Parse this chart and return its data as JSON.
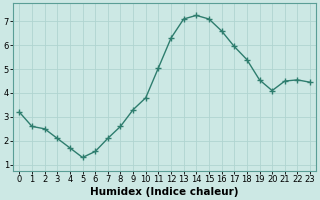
{
  "title": "",
  "xlabel": "Humidex (Indice chaleur)",
  "ylabel": "",
  "x": [
    0,
    1,
    2,
    3,
    4,
    5,
    6,
    7,
    8,
    9,
    10,
    11,
    12,
    13,
    14,
    15,
    16,
    17,
    18,
    19,
    20,
    21,
    22,
    23
  ],
  "y": [
    3.2,
    2.6,
    2.5,
    2.1,
    1.7,
    1.3,
    1.55,
    2.1,
    2.6,
    3.3,
    3.8,
    5.05,
    6.3,
    7.1,
    7.25,
    7.1,
    6.6,
    5.95,
    5.4,
    4.55,
    4.1,
    4.5,
    4.55,
    4.45
  ],
  "line_color": "#2e7d6e",
  "marker": "+",
  "bg_color": "#cce8e4",
  "grid_color": "#b0d4d0",
  "spine_color": "#5a9e96",
  "ylim": [
    0.75,
    7.75
  ],
  "xlim": [
    -0.5,
    23.5
  ],
  "yticks": [
    1,
    2,
    3,
    4,
    5,
    6,
    7
  ],
  "xticks": [
    0,
    1,
    2,
    3,
    4,
    5,
    6,
    7,
    8,
    9,
    10,
    11,
    12,
    13,
    14,
    15,
    16,
    17,
    18,
    19,
    20,
    21,
    22,
    23
  ],
  "tick_fontsize": 6,
  "xlabel_fontsize": 7.5,
  "line_width": 1.0,
  "marker_size": 4
}
